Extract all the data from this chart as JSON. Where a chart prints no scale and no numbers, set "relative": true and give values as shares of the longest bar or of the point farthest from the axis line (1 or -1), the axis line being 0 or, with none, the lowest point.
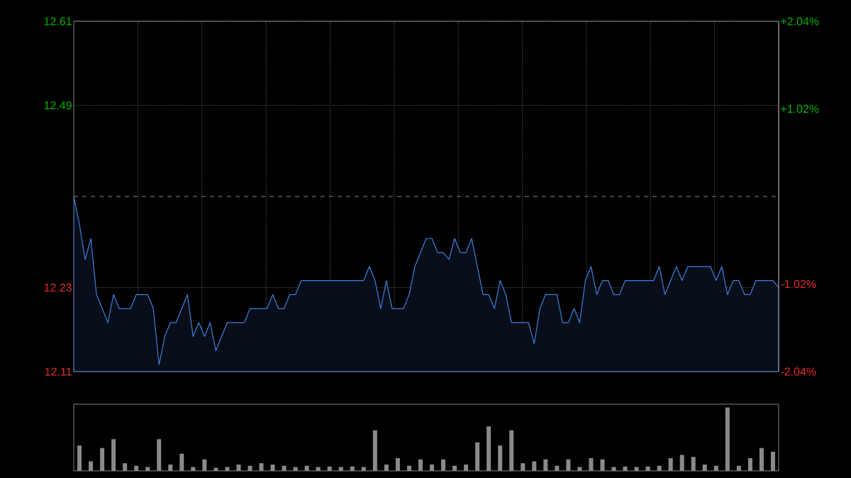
{
  "chart_data": [
    {
      "type": "area",
      "color": "#3f7fdf",
      "categories": [
        null,
        null,
        null,
        null,
        null,
        null,
        null,
        null,
        null,
        null,
        null,
        null,
        null,
        null,
        null,
        null,
        null,
        null,
        null,
        null,
        null,
        null,
        null,
        null,
        null,
        null,
        null,
        null,
        null,
        null,
        null,
        null,
        null,
        null,
        null,
        null,
        null,
        null,
        null,
        null,
        null,
        null,
        null,
        null,
        null,
        null,
        null,
        null,
        null,
        null,
        null,
        null,
        null,
        null,
        null,
        null,
        null,
        null,
        null,
        null,
        null,
        null,
        null,
        null,
        null,
        null,
        null,
        null,
        null,
        null,
        null,
        null,
        null,
        null,
        null,
        null,
        null,
        null,
        null,
        null,
        null,
        null,
        null,
        null,
        null,
        null,
        null,
        null,
        null,
        null,
        null,
        null,
        null,
        null,
        null,
        null,
        null,
        null,
        null,
        null,
        null,
        null,
        null,
        null,
        null,
        null,
        null,
        null,
        null,
        null,
        null,
        null,
        null,
        null,
        null,
        null,
        null,
        null,
        null,
        null,
        null,
        null,
        null,
        null,
        null
      ],
      "values": [
        12.36,
        12.32,
        12.27,
        12.3,
        12.22,
        12.2,
        12.18,
        12.22,
        12.2,
        12.2,
        12.2,
        12.22,
        12.22,
        12.22,
        12.2,
        12.12,
        12.16,
        12.18,
        12.18,
        12.2,
        12.22,
        12.16,
        12.18,
        12.16,
        12.18,
        12.14,
        12.16,
        12.18,
        12.18,
        12.18,
        12.18,
        12.2,
        12.2,
        12.2,
        12.2,
        12.22,
        12.2,
        12.2,
        12.22,
        12.22,
        12.24,
        12.24,
        12.24,
        12.24,
        12.24,
        12.24,
        12.24,
        12.24,
        12.24,
        12.24,
        12.24,
        12.24,
        12.26,
        12.24,
        12.2,
        12.24,
        12.2,
        12.2,
        12.2,
        12.22,
        12.26,
        12.28,
        12.3,
        12.3,
        12.28,
        12.28,
        12.27,
        12.3,
        12.28,
        12.28,
        12.3,
        12.26,
        12.22,
        12.22,
        12.2,
        12.24,
        12.22,
        12.18,
        12.18,
        12.18,
        12.18,
        12.15,
        12.2,
        12.22,
        12.22,
        12.22,
        12.18,
        12.18,
        12.2,
        12.18,
        12.24,
        12.26,
        12.22,
        12.24,
        12.24,
        12.22,
        12.22,
        12.24,
        12.24,
        12.24,
        12.24,
        12.24,
        12.24,
        12.26,
        12.22,
        12.24,
        12.26,
        12.24,
        12.26,
        12.26,
        12.26,
        12.26,
        12.26,
        12.24,
        12.26,
        12.22,
        12.24,
        12.24,
        12.22,
        12.22,
        12.24,
        12.24,
        12.24,
        12.24,
        12.23
      ],
      "ylim": [
        12.11,
        12.61
      ],
      "yticks": [
        12.11,
        12.23,
        12.49,
        12.61
      ],
      "y2lim": [
        -2.04,
        2.04
      ],
      "y2ticks": [
        {
          "value": 2.04,
          "label": "+2.04%"
        },
        {
          "value": 1.02,
          "label": "+1.02%"
        },
        {
          "value": -1.02,
          "label": "-1.02%"
        },
        {
          "value": -2.04,
          "label": "-2.04%"
        }
      ],
      "ref_lines": [
        {
          "axis": "y",
          "value": 12.36,
          "line_style": "dashed"
        }
      ],
      "grid": true
    },
    {
      "type": "bar",
      "relative": true,
      "color": "#8a8a8a",
      "categories": [
        null,
        null,
        null,
        null,
        null,
        null,
        null,
        null,
        null,
        null,
        null,
        null,
        null,
        null,
        null,
        null,
        null,
        null,
        null,
        null,
        null,
        null,
        null,
        null,
        null,
        null,
        null,
        null,
        null,
        null,
        null,
        null,
        null,
        null,
        null,
        null,
        null,
        null,
        null,
        null,
        null,
        null,
        null,
        null,
        null,
        null,
        null,
        null,
        null,
        null,
        null,
        null,
        null,
        null,
        null,
        null,
        null,
        null,
        null,
        null,
        null,
        null
      ],
      "values": [
        0.4,
        0.15,
        0.36,
        0.5,
        0.12,
        0.08,
        0.06,
        0.5,
        0.1,
        0.27,
        0.06,
        0.18,
        0.05,
        0.06,
        0.1,
        0.08,
        0.12,
        0.1,
        0.08,
        0.06,
        0.08,
        0.06,
        0.07,
        0.06,
        0.07,
        0.06,
        0.64,
        0.1,
        0.2,
        0.08,
        0.18,
        0.1,
        0.18,
        0.08,
        0.1,
        0.45,
        0.7,
        0.4,
        0.64,
        0.12,
        0.15,
        0.18,
        0.08,
        0.18,
        0.06,
        0.2,
        0.18,
        0.06,
        0.07,
        0.06,
        0.07,
        0.08,
        0.2,
        0.25,
        0.22,
        0.1,
        0.08,
        1,
        0.08,
        0.2,
        0.36,
        0.3
      ]
    }
  ]
}
